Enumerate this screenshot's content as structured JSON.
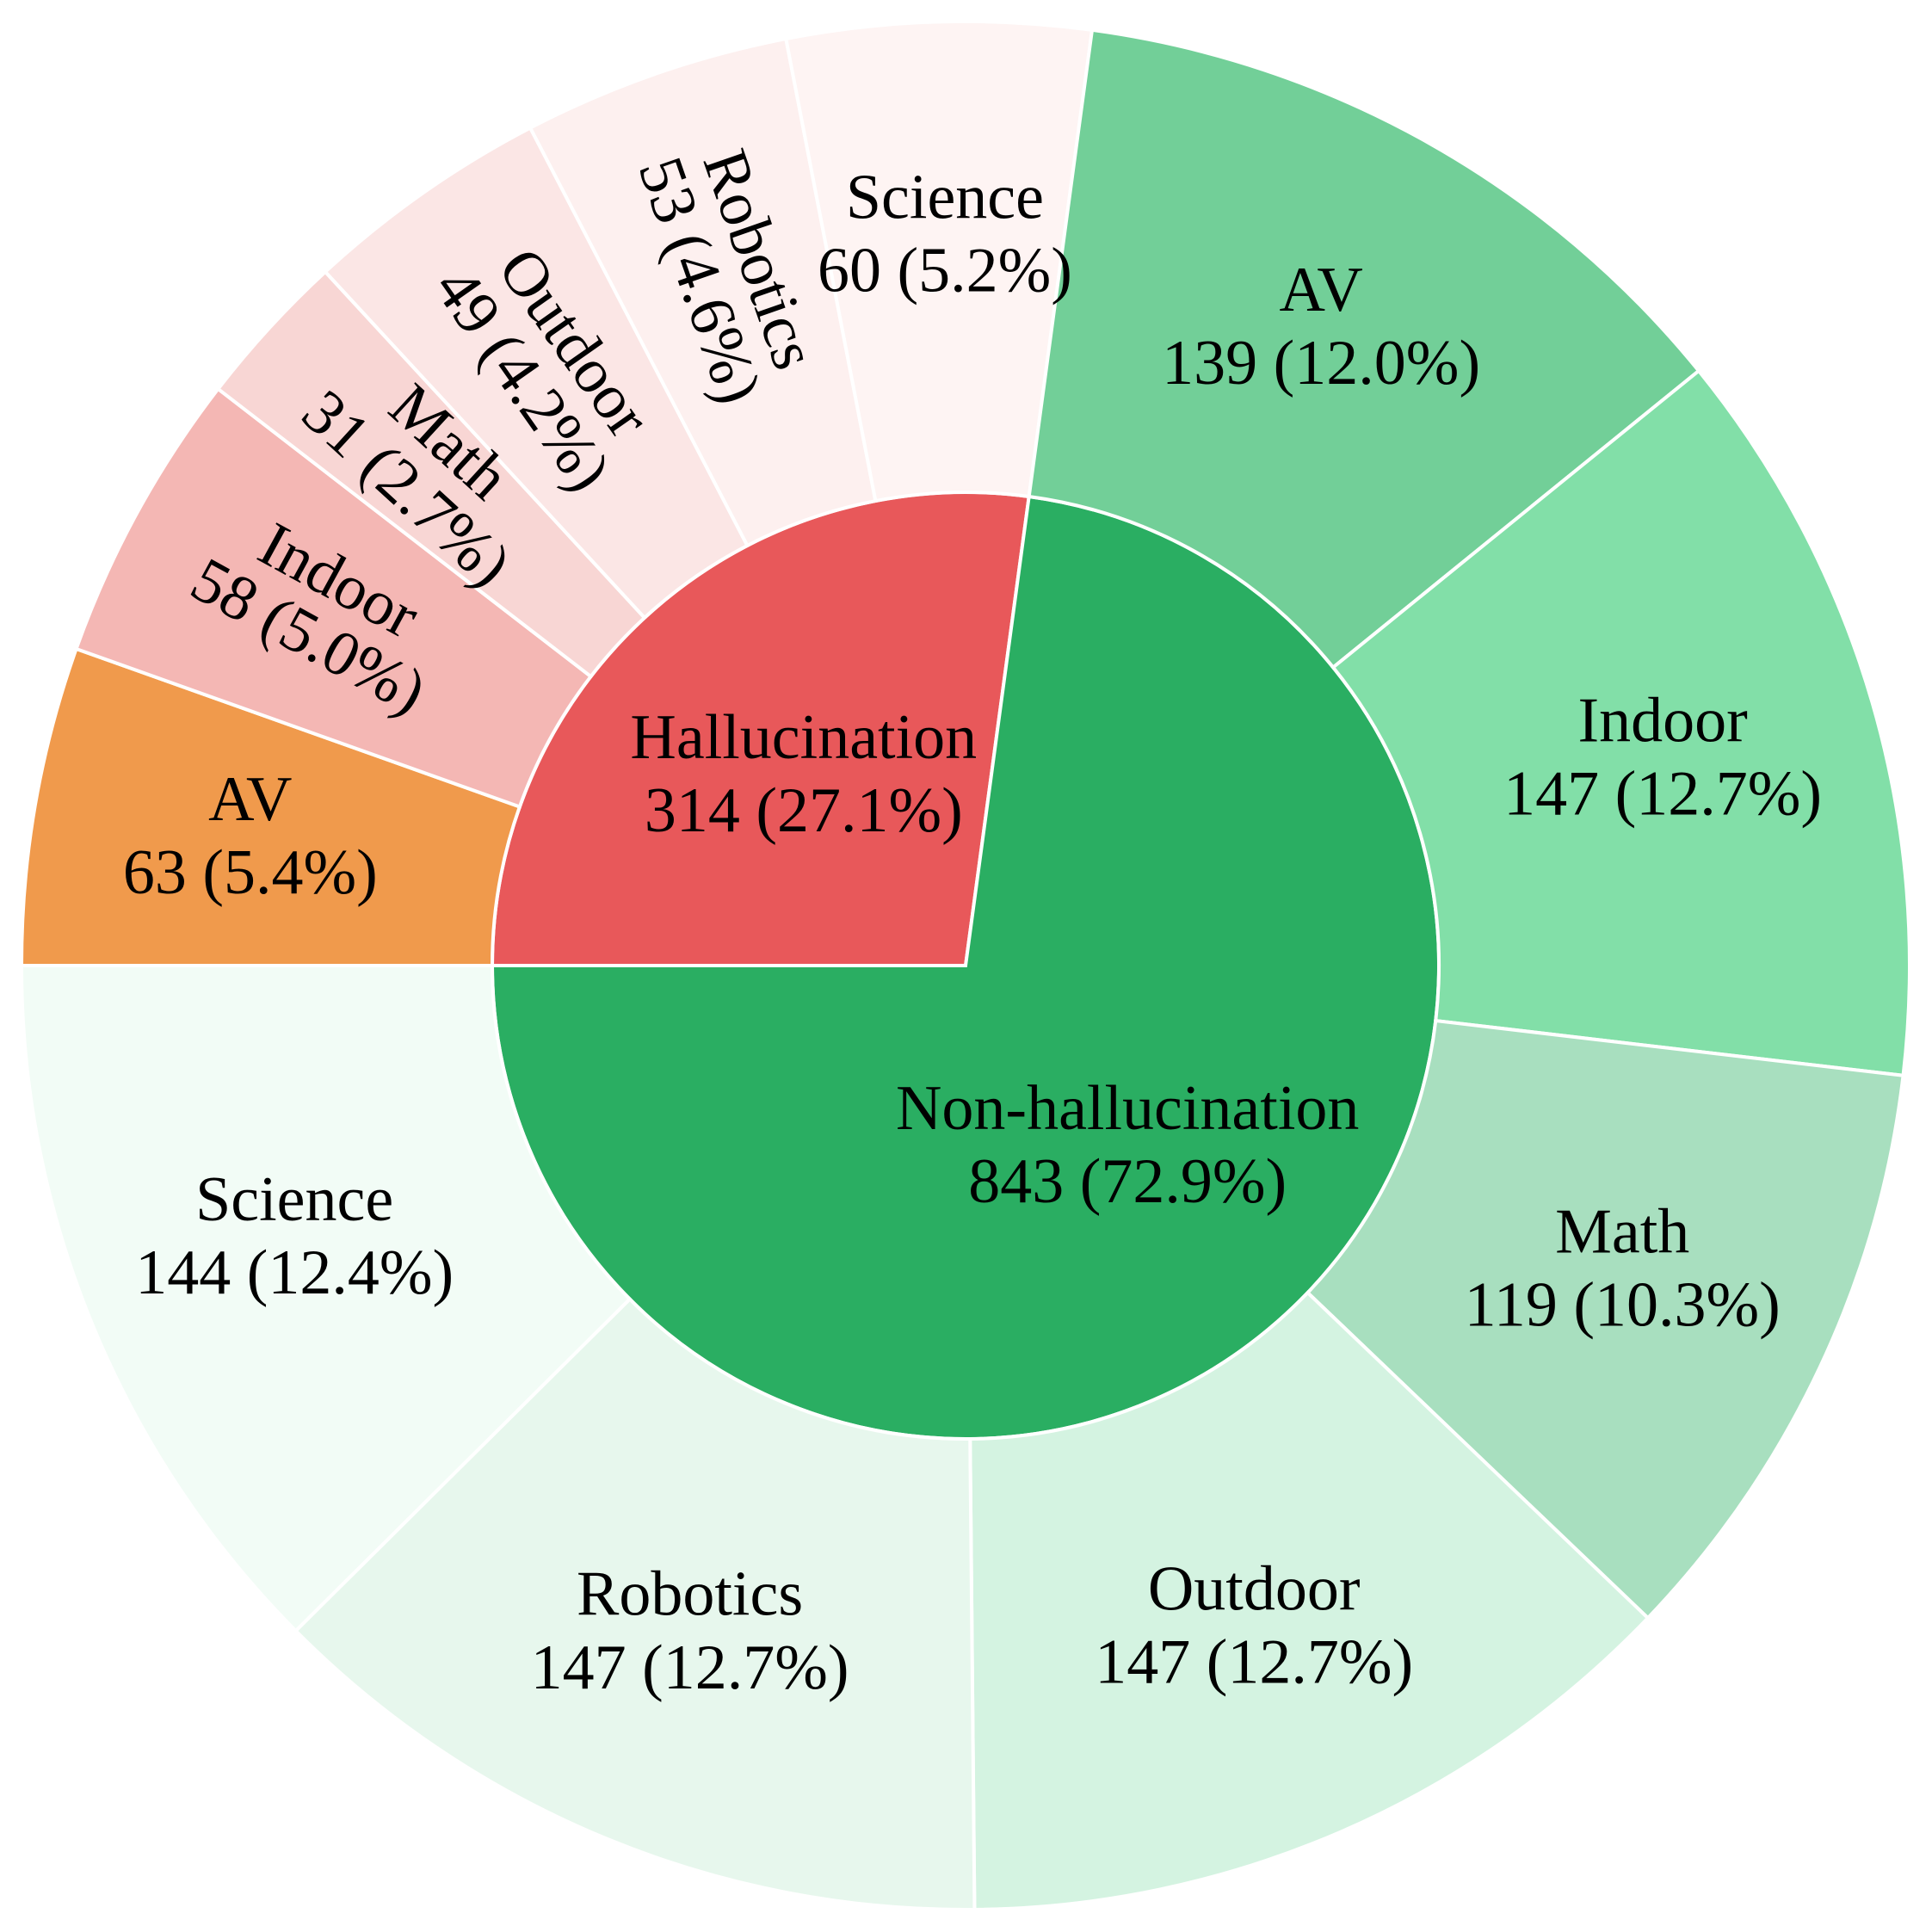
{
  "chart_data": {
    "type": "sunburst",
    "series": [
      {
        "name": "Hallucination",
        "color": "#e8585a",
        "value": 314,
        "value_label": "314 (27.1%)",
        "categories": [
          "AV",
          "Indoor",
          "Math",
          "Outdoor",
          "Robotics",
          "Science"
        ],
        "values": [
          63,
          58,
          31,
          49,
          53,
          60
        ],
        "value_labels": [
          "63 (5.4%)",
          "58 (5.0%)",
          "31 (2.7%)",
          "49 (4.2%)",
          "53 (4.6%)",
          "60 (5.2%)"
        ],
        "colors": [
          "#f09a4c",
          "#f4b7b4",
          "#f8d6d4",
          "#fbe6e5",
          "#fdf0ef",
          "#fef4f3"
        ]
      },
      {
        "name": "Non-hallucination",
        "color": "#2aae62",
        "value": 843,
        "value_label": "843 (72.9%)",
        "categories": [
          "AV",
          "Indoor",
          "Math",
          "Outdoor",
          "Robotics",
          "Science"
        ],
        "values": [
          139,
          147,
          119,
          147,
          147,
          144
        ],
        "value_labels": [
          "139 (12.0%)",
          "147 (12.7%)",
          "119 (10.3%)",
          "147 (12.7%)",
          "147 (12.7%)",
          "144 (12.4%)"
        ],
        "colors": [
          "#72cf98",
          "#82dfa8",
          "#a8dfbf",
          "#d4f3e1",
          "#e7f7ed",
          "#f2fcf6"
        ]
      }
    ]
  }
}
